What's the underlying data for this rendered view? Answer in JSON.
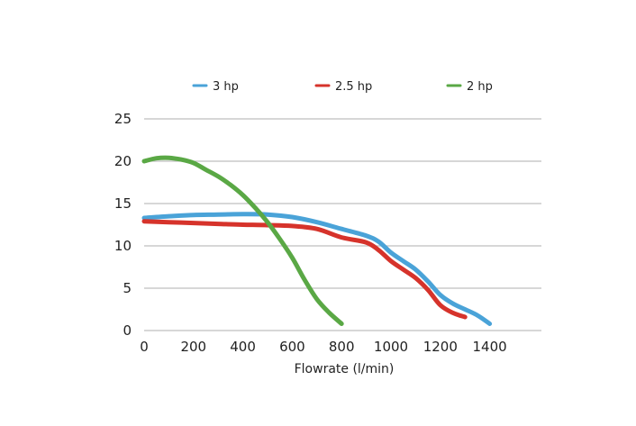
{
  "chart_data": {
    "type": "line",
    "title": "",
    "xlabel": "Flowrate  (l/min)",
    "ylabel": "",
    "xlim": [
      0,
      1600
    ],
    "ylim": [
      0,
      25
    ],
    "x_ticks": [
      0,
      200,
      400,
      600,
      800,
      1000,
      1200,
      1400
    ],
    "y_ticks": [
      0,
      5,
      10,
      15,
      20,
      25
    ],
    "grid": "horizontal",
    "legend_position": "top",
    "series": [
      {
        "name": "3 hp",
        "color": "#4aa3d8",
        "points": [
          [
            0,
            13.3
          ],
          [
            100,
            13.5
          ],
          [
            200,
            13.65
          ],
          [
            300,
            13.7
          ],
          [
            400,
            13.75
          ],
          [
            500,
            13.7
          ],
          [
            600,
            13.4
          ],
          [
            700,
            12.8
          ],
          [
            800,
            12.0
          ],
          [
            900,
            11.2
          ],
          [
            950,
            10.5
          ],
          [
            1000,
            9.2
          ],
          [
            1050,
            8.2
          ],
          [
            1100,
            7.2
          ],
          [
            1150,
            5.8
          ],
          [
            1200,
            4.2
          ],
          [
            1250,
            3.2
          ],
          [
            1300,
            2.5
          ],
          [
            1350,
            1.8
          ],
          [
            1400,
            0.8
          ]
        ]
      },
      {
        "name": "2.5 hp",
        "color": "#d6332b",
        "points": [
          [
            0,
            12.9
          ],
          [
            100,
            12.8
          ],
          [
            200,
            12.7
          ],
          [
            300,
            12.6
          ],
          [
            400,
            12.5
          ],
          [
            500,
            12.45
          ],
          [
            600,
            12.35
          ],
          [
            700,
            12.0
          ],
          [
            800,
            11.0
          ],
          [
            900,
            10.4
          ],
          [
            950,
            9.5
          ],
          [
            1000,
            8.2
          ],
          [
            1050,
            7.2
          ],
          [
            1100,
            6.2
          ],
          [
            1150,
            4.8
          ],
          [
            1200,
            3.0
          ],
          [
            1250,
            2.1
          ],
          [
            1300,
            1.6
          ]
        ]
      },
      {
        "name": "2 hp",
        "color": "#5aa845",
        "points": [
          [
            0,
            20.0
          ],
          [
            50,
            20.35
          ],
          [
            100,
            20.4
          ],
          [
            150,
            20.2
          ],
          [
            200,
            19.8
          ],
          [
            250,
            19.0
          ],
          [
            300,
            18.2
          ],
          [
            350,
            17.2
          ],
          [
            400,
            16.0
          ],
          [
            450,
            14.5
          ],
          [
            500,
            12.8
          ],
          [
            550,
            10.8
          ],
          [
            600,
            8.6
          ],
          [
            650,
            6.0
          ],
          [
            700,
            3.7
          ],
          [
            750,
            2.1
          ],
          [
            800,
            0.8
          ]
        ]
      }
    ]
  }
}
